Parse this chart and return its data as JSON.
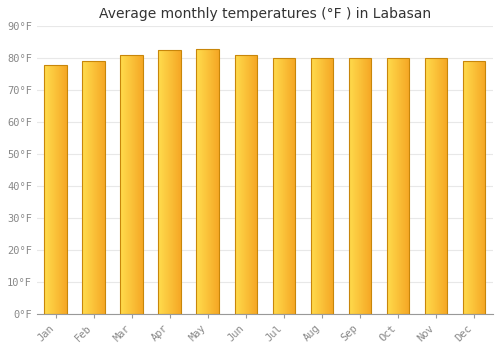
{
  "title": "Average monthly temperatures (°F ) in Labasan",
  "months": [
    "Jan",
    "Feb",
    "Mar",
    "Apr",
    "May",
    "Jun",
    "Jul",
    "Aug",
    "Sep",
    "Oct",
    "Nov",
    "Dec"
  ],
  "values": [
    78.0,
    79.0,
    81.0,
    82.5,
    83.0,
    81.0,
    80.0,
    80.0,
    80.0,
    80.0,
    80.0,
    79.0
  ],
  "bar_color_left": "#FFD84D",
  "bar_color_right": "#F5A623",
  "bar_edge_color": "#C8860A",
  "background_color": "#FFFFFF",
  "grid_color": "#E8E8E8",
  "title_fontsize": 10,
  "tick_fontsize": 7.5,
  "ylim": [
    0,
    90
  ],
  "yticks": [
    0,
    10,
    20,
    30,
    40,
    50,
    60,
    70,
    80,
    90
  ],
  "bar_width": 0.6,
  "figsize": [
    5.0,
    3.5
  ],
  "dpi": 100
}
